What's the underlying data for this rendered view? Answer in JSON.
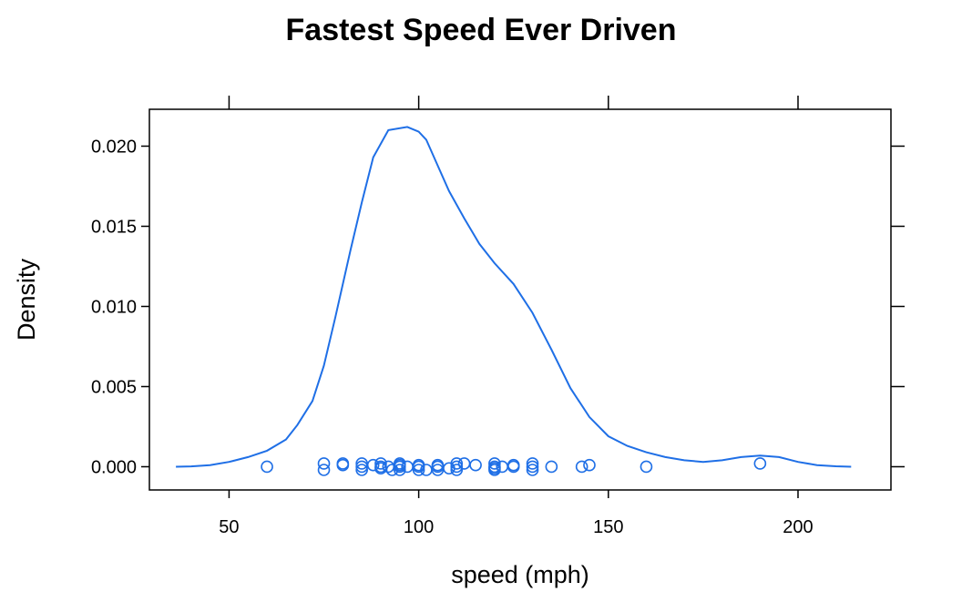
{
  "chart_data": {
    "type": "density",
    "title": "Fastest Speed Ever Driven",
    "xlabel": "speed (mph)",
    "ylabel": "Density",
    "xlim": [
      29.0,
      224.5
    ],
    "ylim": [
      -0.00145,
      0.0223
    ],
    "x_ticks": [
      50,
      100,
      150,
      200
    ],
    "x_tick_labels": [
      "50",
      "100",
      "150",
      "200"
    ],
    "y_ticks": [
      0.0,
      0.005,
      0.01,
      0.015,
      0.02
    ],
    "y_tick_labels": [
      "0.000",
      "0.005",
      "0.010",
      "0.015",
      "0.020"
    ],
    "grid": false,
    "line_color": "#1f6fe6",
    "density_curve": {
      "x": [
        36,
        40,
        45,
        50,
        55,
        60,
        65,
        68,
        72,
        75,
        78,
        82,
        85,
        88,
        92,
        97,
        100,
        102,
        105,
        108,
        112,
        116,
        120,
        125,
        130,
        135,
        140,
        145,
        150,
        155,
        160,
        165,
        170,
        175,
        180,
        185,
        190,
        195,
        200,
        205,
        210,
        214
      ],
      "y": [
        0.0,
        2e-05,
        0.0001,
        0.0003,
        0.0006,
        0.001,
        0.0017,
        0.0026,
        0.0041,
        0.0063,
        0.0093,
        0.0135,
        0.0165,
        0.0193,
        0.021,
        0.0212,
        0.0209,
        0.0204,
        0.0188,
        0.0172,
        0.0155,
        0.0139,
        0.0127,
        0.0114,
        0.0096,
        0.0073,
        0.0049,
        0.0031,
        0.0019,
        0.0013,
        0.0009,
        0.0006,
        0.0004,
        0.0003,
        0.0004,
        0.0006,
        0.0007,
        0.0006,
        0.0003,
        0.0001,
        3e-05,
        0.0
      ]
    },
    "rug_points": {
      "x": [
        60,
        75,
        75,
        80,
        80,
        85,
        85,
        85,
        88,
        90,
        90,
        90,
        92,
        93,
        95,
        95,
        95,
        95,
        97,
        100,
        100,
        100,
        102,
        105,
        105,
        105,
        108,
        110,
        110,
        110,
        112,
        115,
        120,
        120,
        120,
        120,
        122,
        125,
        125,
        130,
        130,
        130,
        135,
        143,
        145,
        160,
        190
      ],
      "y": [
        0.0,
        -0.0002,
        0.0002,
        0.0002,
        0.0001,
        0.0,
        -0.0002,
        0.0002,
        0.0001,
        0.0,
        0.0002,
        -0.0001,
        0.0,
        -0.0002,
        0.0,
        0.0002,
        -0.0002,
        0.0001,
        0.0,
        0.0,
        -0.0002,
        0.0001,
        -0.0002,
        0.0,
        -0.0002,
        0.0001,
        -0.0001,
        0.0,
        0.0002,
        -0.0002,
        0.0002,
        0.0001,
        0.0,
        -0.0002,
        0.0002,
        -0.0001,
        0.0,
        0.0,
        0.0001,
        0.0,
        0.0002,
        -0.0002,
        0.0,
        0.0,
        0.0001,
        0.0,
        0.0002
      ]
    }
  }
}
